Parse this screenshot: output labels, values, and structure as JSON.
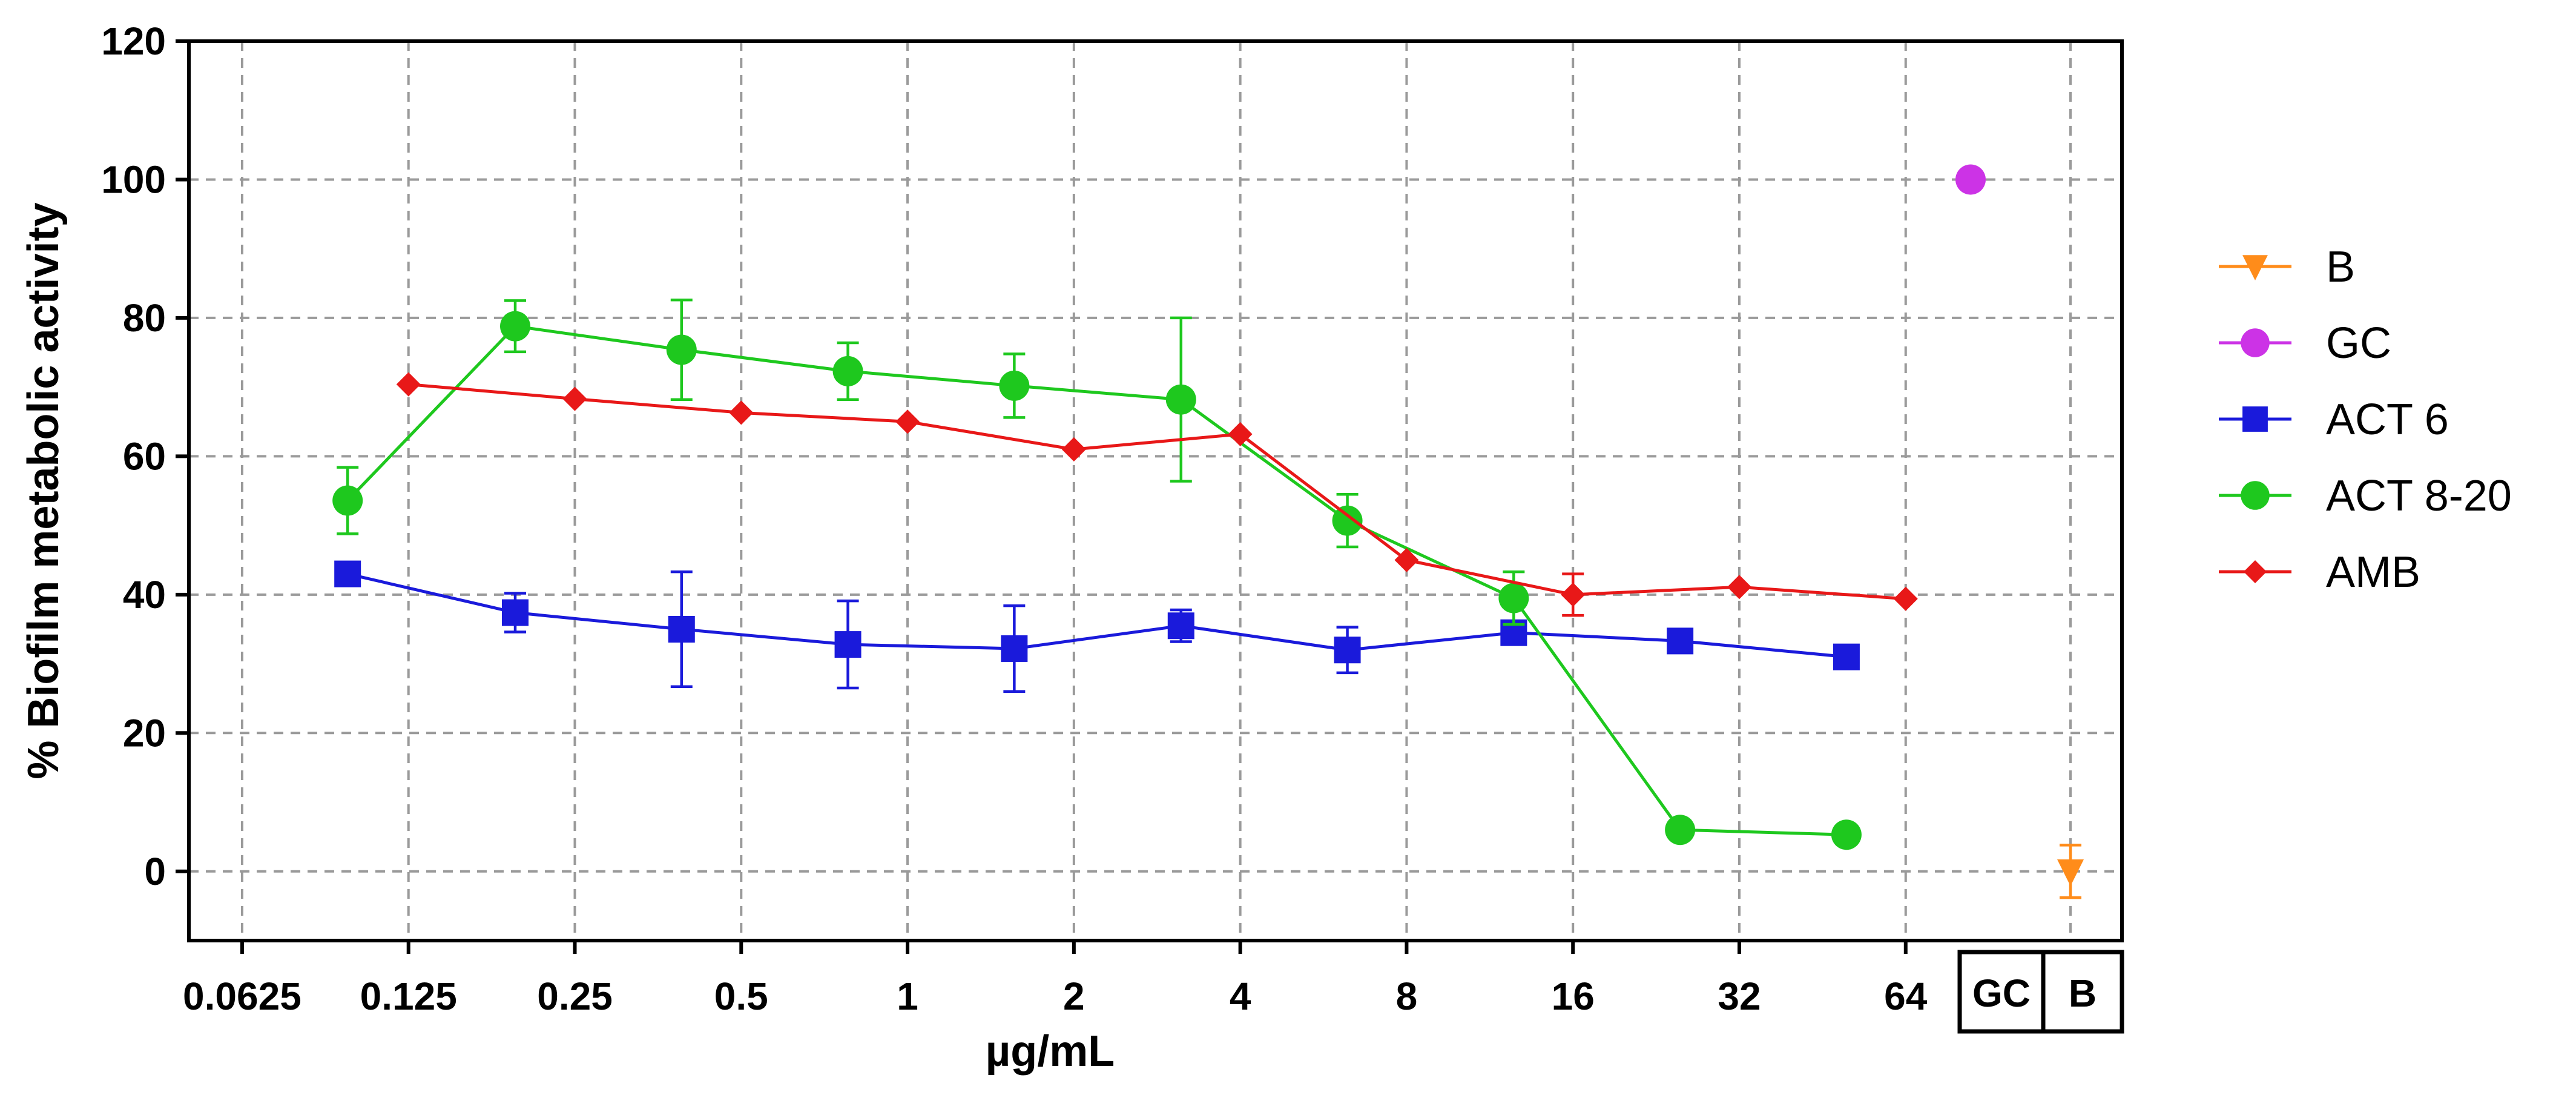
{
  "chart_data": {
    "type": "line",
    "xlabel": "µg/mL",
    "ylabel": "% Biofilm metabolic activity",
    "ylim": [
      -10,
      120
    ],
    "yticks": [
      0,
      20,
      40,
      60,
      80,
      100,
      120
    ],
    "x_scale": "log2",
    "xlim_log2": [
      -4.32,
      7.3
    ],
    "xtick_labels": [
      "0.0625",
      "0.125",
      "0.25",
      "0.5",
      "1",
      "2",
      "4",
      "8",
      "16",
      "32",
      "64"
    ],
    "xtick_values": [
      0.0625,
      0.125,
      0.25,
      0.5,
      1,
      2,
      4,
      8,
      16,
      32,
      64
    ],
    "category_boxes": [
      "GC",
      "B"
    ],
    "grid": true,
    "legend_position": "right",
    "series": [
      {
        "name": "B",
        "color": "#ff8c1a",
        "marker": "triangle-down",
        "points": [
          {
            "category": "B",
            "y": 0,
            "err": 3.8
          }
        ]
      },
      {
        "name": "GC",
        "color": "#cc33e6",
        "marker": "circle",
        "points": [
          {
            "category": "GC",
            "y": 100,
            "err": 0
          }
        ]
      },
      {
        "name": "ACT 6",
        "color": "#1a1adb",
        "marker": "square",
        "points": [
          {
            "x": 0.097,
            "y": 43.0,
            "err": 0.8
          },
          {
            "x": 0.195,
            "y": 37.4,
            "err": 2.8
          },
          {
            "x": 0.39,
            "y": 35.0,
            "err": 8.3
          },
          {
            "x": 0.78,
            "y": 32.8,
            "err": 6.3
          },
          {
            "x": 1.56,
            "y": 32.2,
            "err": 6.2
          },
          {
            "x": 3.125,
            "y": 35.5,
            "err": 2.3
          },
          {
            "x": 6.25,
            "y": 32.0,
            "err": 3.3
          },
          {
            "x": 12.5,
            "y": 34.5,
            "err": 1.2
          },
          {
            "x": 25,
            "y": 33.3,
            "err": 1.2
          },
          {
            "x": 50,
            "y": 31.0,
            "err": 1.2
          }
        ]
      },
      {
        "name": "ACT 8-20",
        "color": "#1ec81e",
        "marker": "circle",
        "points": [
          {
            "x": 0.097,
            "y": 53.6,
            "err": 4.8
          },
          {
            "x": 0.195,
            "y": 78.8,
            "err": 3.7
          },
          {
            "x": 0.39,
            "y": 75.4,
            "err": 7.2
          },
          {
            "x": 0.78,
            "y": 72.3,
            "err": 4.1
          },
          {
            "x": 1.56,
            "y": 70.2,
            "err": 4.6
          },
          {
            "x": 3.125,
            "y": 68.2,
            "err": 11.8
          },
          {
            "x": 6.25,
            "y": 50.7,
            "err": 3.8
          },
          {
            "x": 12.5,
            "y": 39.5,
            "err": 3.8
          },
          {
            "x": 25,
            "y": 6.0,
            "err": 0.6
          },
          {
            "x": 50,
            "y": 5.3,
            "err": 0.6
          }
        ]
      },
      {
        "name": "AMB",
        "color": "#e81818",
        "marker": "diamond",
        "points": [
          {
            "x": 0.125,
            "y": 70.4,
            "err": 0.5
          },
          {
            "x": 0.25,
            "y": 68.3,
            "err": 0.5
          },
          {
            "x": 0.5,
            "y": 66.3,
            "err": 0.5
          },
          {
            "x": 1,
            "y": 65.0,
            "err": 0.5
          },
          {
            "x": 2,
            "y": 61.0,
            "err": 0.5
          },
          {
            "x": 4,
            "y": 63.2,
            "err": 0.5
          },
          {
            "x": 8,
            "y": 45.0,
            "err": 0.5
          },
          {
            "x": 16,
            "y": 40.0,
            "err": 3.0
          },
          {
            "x": 32,
            "y": 41.1,
            "err": 0.5
          },
          {
            "x": 64,
            "y": 39.4,
            "err": 0.5
          }
        ]
      }
    ]
  }
}
